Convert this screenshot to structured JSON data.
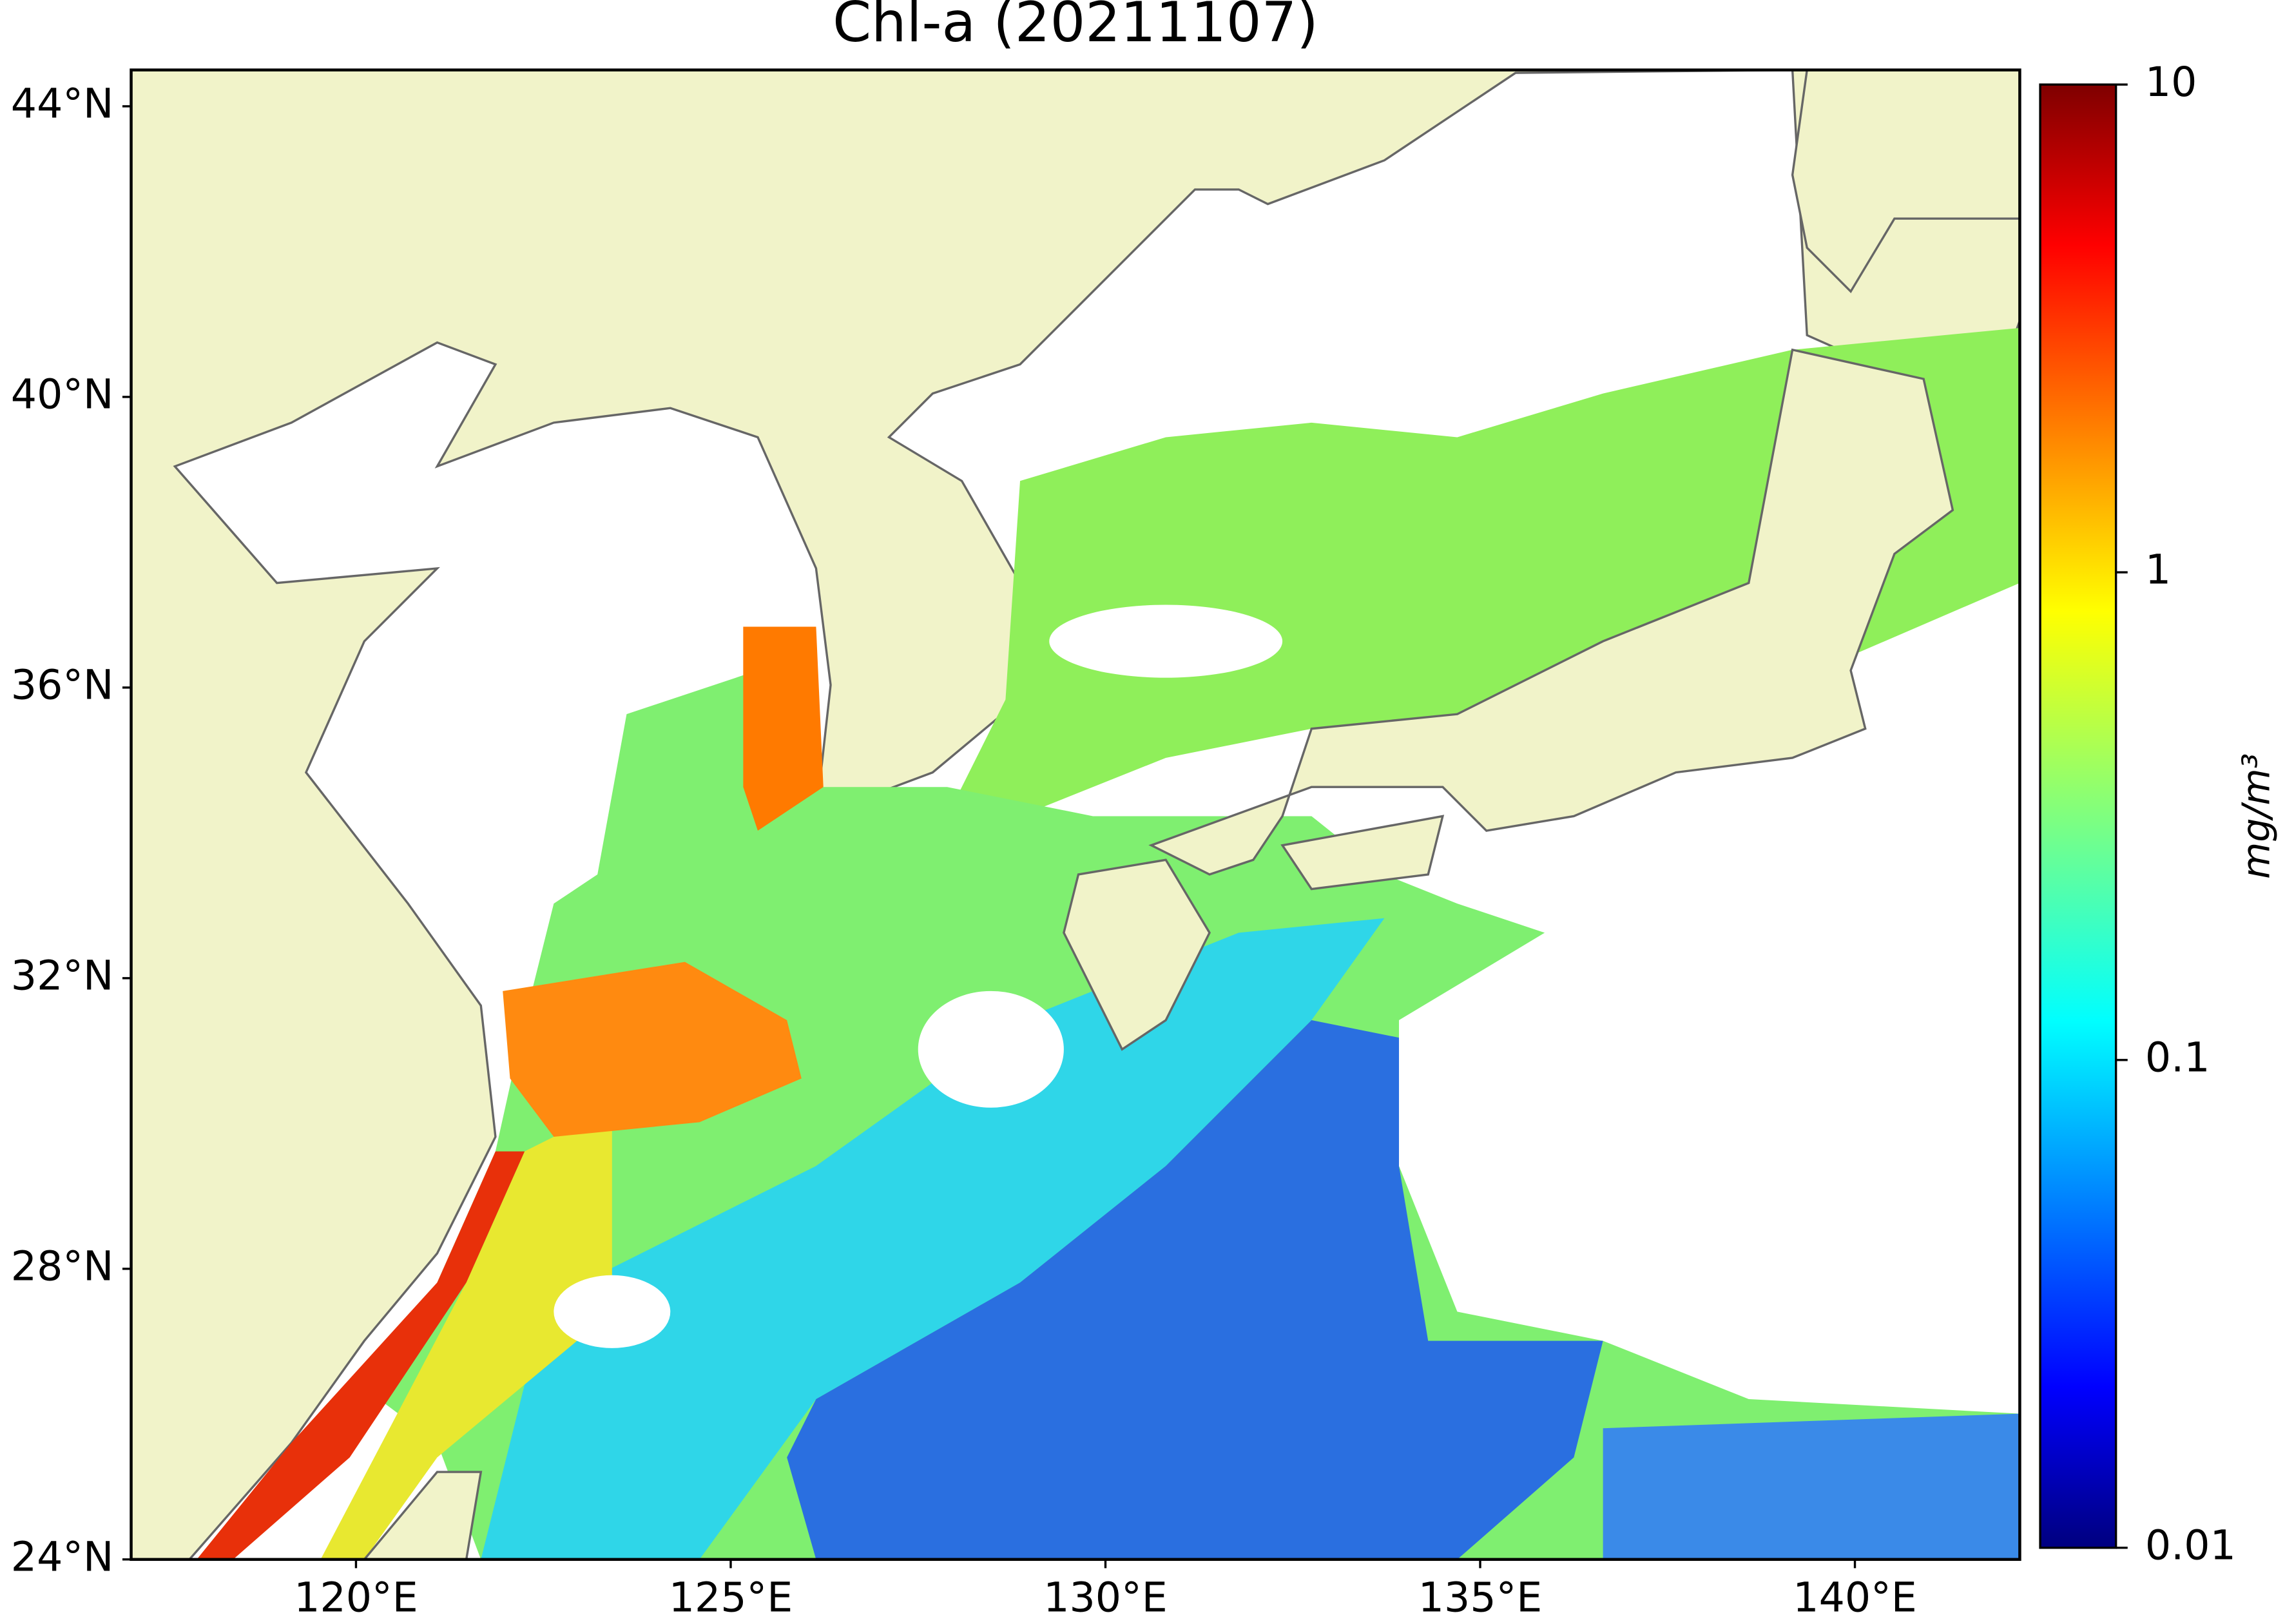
{
  "title": "Chl-a (20211107)",
  "map": {
    "lonlim": [
      117,
      142.2
    ],
    "latlim": [
      24,
      44.5
    ],
    "xticks": [
      {
        "value": 120,
        "label": "120°E"
      },
      {
        "value": 125,
        "label": "125°E"
      },
      {
        "value": 130,
        "label": "130°E"
      },
      {
        "value": 135,
        "label": "135°E"
      },
      {
        "value": 140,
        "label": "140°E"
      }
    ],
    "yticks": [
      {
        "value": 24,
        "label": "24°N"
      },
      {
        "value": 28,
        "label": "28°N"
      },
      {
        "value": 32,
        "label": "32°N"
      },
      {
        "value": 36,
        "label": "36°N"
      },
      {
        "value": 40,
        "label": "40°N"
      },
      {
        "value": 44,
        "label": "44°N"
      }
    ]
  },
  "colorbar": {
    "lim": [
      0.01,
      10
    ],
    "log": true,
    "ticks": [
      0.01,
      0.1,
      1,
      10
    ],
    "label": "mg/m³",
    "colormap": "jet"
  }
}
